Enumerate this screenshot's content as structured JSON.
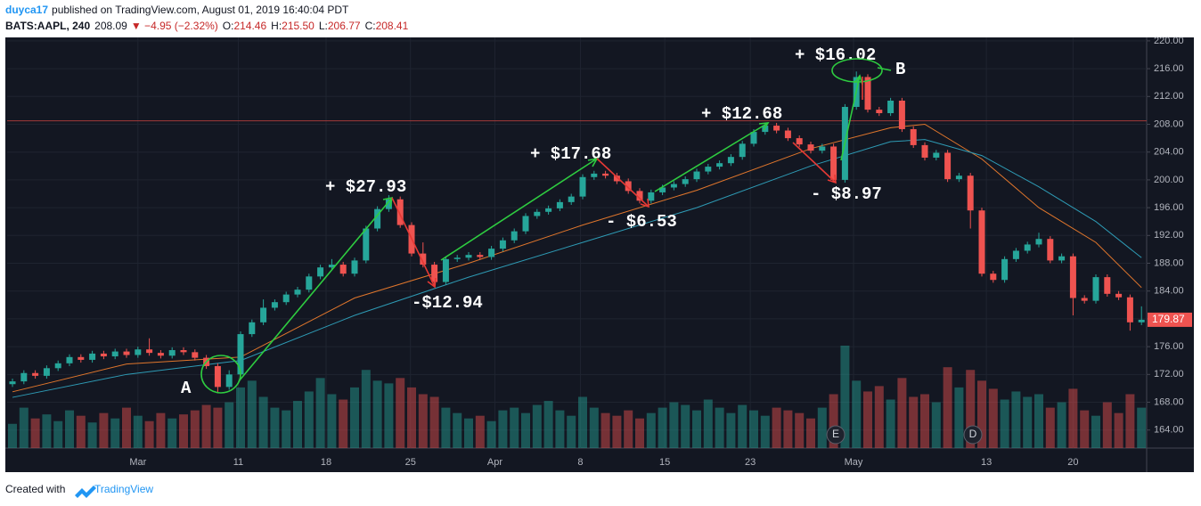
{
  "header": {
    "author": "duyca17",
    "published": "published on TradingView.com, August 01, 2019 16:40:04 PDT",
    "symbol": "BATS:AAPL, 240",
    "price": "208.09",
    "change": "▼ −4.95 (−2.32%)",
    "ohlc": [
      {
        "k": "O:",
        "v": "214.46"
      },
      {
        "k": "H:",
        "v": "215.50"
      },
      {
        "k": "L:",
        "v": "206.77"
      },
      {
        "k": "C:",
        "v": "208.41"
      }
    ]
  },
  "footer": {
    "text": "Created with",
    "brand": "TradingView"
  },
  "chart_data": {
    "type": "candlestick",
    "ylim": [
      161.4,
      220.5
    ],
    "yticks": [
      {
        "value": 164,
        "label": "164.00"
      },
      {
        "value": 168,
        "label": "168.00"
      },
      {
        "value": 172,
        "label": "172.00"
      },
      {
        "value": 176,
        "label": "176.00"
      },
      {
        "value": 180,
        "label": "180.00"
      },
      {
        "value": 184,
        "label": "184.00"
      },
      {
        "value": 188,
        "label": "188.00"
      },
      {
        "value": 192,
        "label": "192.00"
      },
      {
        "value": 196,
        "label": "196.00"
      },
      {
        "value": 200,
        "label": "200.00"
      },
      {
        "value": 204,
        "label": "204.00"
      },
      {
        "value": 208,
        "label": "208.00"
      },
      {
        "value": 212,
        "label": "212.00"
      },
      {
        "value": 216,
        "label": "216.00"
      },
      {
        "value": 220,
        "label": "220.00"
      }
    ],
    "xticks": [
      {
        "value": 11,
        "label": "Mar"
      },
      {
        "value": 19.8,
        "label": "11"
      },
      {
        "value": 27.5,
        "label": "18"
      },
      {
        "value": 34.9,
        "label": "25"
      },
      {
        "value": 42.3,
        "label": "Apr"
      },
      {
        "value": 49.8,
        "label": "8"
      },
      {
        "value": 57.2,
        "label": "15"
      },
      {
        "value": 64.7,
        "label": "23"
      },
      {
        "value": 73.75,
        "label": "May"
      },
      {
        "value": 85.4,
        "label": "13"
      },
      {
        "value": 93,
        "label": "20"
      }
    ],
    "grid": true,
    "up_color": "#26a69a",
    "down_color": "#ef5350",
    "candles": [
      [
        170.6,
        171.4,
        170.2,
        171.0
      ],
      [
        171.0,
        172.6,
        170.6,
        172.2
      ],
      [
        172.2,
        172.6,
        171.4,
        171.8
      ],
      [
        171.8,
        173.3,
        171.4,
        172.9
      ],
      [
        172.9,
        174.0,
        172.5,
        173.6
      ],
      [
        173.6,
        174.9,
        173.2,
        174.5
      ],
      [
        174.5,
        174.9,
        173.7,
        174.1
      ],
      [
        174.1,
        175.4,
        173.7,
        175.0
      ],
      [
        175.0,
        175.4,
        174.2,
        174.6
      ],
      [
        174.6,
        175.7,
        174.2,
        175.3
      ],
      [
        175.3,
        175.7,
        174.4,
        174.8
      ],
      [
        174.8,
        176.0,
        174.4,
        175.6
      ],
      [
        175.6,
        177.2,
        174.7,
        175.1
      ],
      [
        175.1,
        175.5,
        174.3,
        174.7
      ],
      [
        174.7,
        175.9,
        174.3,
        175.5
      ],
      [
        175.5,
        175.9,
        174.8,
        175.2
      ],
      [
        175.2,
        175.6,
        174.0,
        174.4
      ],
      [
        174.4,
        174.8,
        172.8,
        173.2
      ],
      [
        173.2,
        173.6,
        169.4,
        170.2
      ],
      [
        170.2,
        172.6,
        169.8,
        172.0
      ],
      [
        172.0,
        178.2,
        171.6,
        177.8
      ],
      [
        177.8,
        179.9,
        177.4,
        179.5
      ],
      [
        179.5,
        182.8,
        179.1,
        181.6
      ],
      [
        181.6,
        182.8,
        181.2,
        182.4
      ],
      [
        182.4,
        183.9,
        182.0,
        183.5
      ],
      [
        183.5,
        184.6,
        183.1,
        184.2
      ],
      [
        184.2,
        186.5,
        183.8,
        186.1
      ],
      [
        186.1,
        187.8,
        185.7,
        187.4
      ],
      [
        187.4,
        188.6,
        187.0,
        187.8
      ],
      [
        187.8,
        188.2,
        186.1,
        186.5
      ],
      [
        186.5,
        188.8,
        186.1,
        188.4
      ],
      [
        188.4,
        193.4,
        188.0,
        193.0
      ],
      [
        193.0,
        196.2,
        192.6,
        195.8
      ],
      [
        195.8,
        197.8,
        195.4,
        197.2
      ],
      [
        197.2,
        197.6,
        193.1,
        193.5
      ],
      [
        193.5,
        193.9,
        189.0,
        189.4
      ],
      [
        189.4,
        191.0,
        187.4,
        187.8
      ],
      [
        187.8,
        188.2,
        184.9,
        185.3
      ],
      [
        185.3,
        189.0,
        184.9,
        188.6
      ],
      [
        188.6,
        189.2,
        188.2,
        188.8
      ],
      [
        188.8,
        189.6,
        188.4,
        189.2
      ],
      [
        189.2,
        189.6,
        188.5,
        188.9
      ],
      [
        188.9,
        190.5,
        188.5,
        190.1
      ],
      [
        190.1,
        191.7,
        189.7,
        191.3
      ],
      [
        191.3,
        193.0,
        190.9,
        192.6
      ],
      [
        192.6,
        195.2,
        192.2,
        194.8
      ],
      [
        194.8,
        195.8,
        194.4,
        195.4
      ],
      [
        195.4,
        196.3,
        195.0,
        195.9
      ],
      [
        195.9,
        197.2,
        195.5,
        196.8
      ],
      [
        196.8,
        198.0,
        196.4,
        197.6
      ],
      [
        197.6,
        200.8,
        197.2,
        200.4
      ],
      [
        200.4,
        201.3,
        200.0,
        200.9
      ],
      [
        200.9,
        201.3,
        200.2,
        200.6
      ],
      [
        200.6,
        201.0,
        199.4,
        199.8
      ],
      [
        199.8,
        200.2,
        198.0,
        198.4
      ],
      [
        198.4,
        198.8,
        196.6,
        197.0
      ],
      [
        197.0,
        198.6,
        196.6,
        198.2
      ],
      [
        198.2,
        199.3,
        197.8,
        198.9
      ],
      [
        198.9,
        199.8,
        198.5,
        199.4
      ],
      [
        199.4,
        200.5,
        199.0,
        200.1
      ],
      [
        200.1,
        201.6,
        199.7,
        201.2
      ],
      [
        201.2,
        202.3,
        200.8,
        201.9
      ],
      [
        201.9,
        202.8,
        201.5,
        202.4
      ],
      [
        202.4,
        203.7,
        202.0,
        203.3
      ],
      [
        203.3,
        205.6,
        202.9,
        205.2
      ],
      [
        205.2,
        207.3,
        204.8,
        206.9
      ],
      [
        206.9,
        208.2,
        206.5,
        207.8
      ],
      [
        207.8,
        208.2,
        206.7,
        207.1
      ],
      [
        207.1,
        207.5,
        205.6,
        206.0
      ],
      [
        206.0,
        206.4,
        204.7,
        205.1
      ],
      [
        205.1,
        205.5,
        203.8,
        204.2
      ],
      [
        204.2,
        205.2,
        203.8,
        204.8
      ],
      [
        204.8,
        205.2,
        199.6,
        200.0
      ],
      [
        200.0,
        210.9,
        199.6,
        210.5
      ],
      [
        210.5,
        215.6,
        210.1,
        214.8
      ],
      [
        214.8,
        215.2,
        209.7,
        210.1
      ],
      [
        210.1,
        210.5,
        209.2,
        209.6
      ],
      [
        209.6,
        211.8,
        209.2,
        211.4
      ],
      [
        211.4,
        211.8,
        206.9,
        207.3
      ],
      [
        207.3,
        207.7,
        204.6,
        205.0
      ],
      [
        205.0,
        205.4,
        202.8,
        203.2
      ],
      [
        203.2,
        204.3,
        202.8,
        203.9
      ],
      [
        203.9,
        204.3,
        199.7,
        200.1
      ],
      [
        200.1,
        201.0,
        199.7,
        200.6
      ],
      [
        200.6,
        201.0,
        193.0,
        195.6
      ],
      [
        195.6,
        196.0,
        186.1,
        186.5
      ],
      [
        186.5,
        186.9,
        185.2,
        185.6
      ],
      [
        185.6,
        189.0,
        185.2,
        188.6
      ],
      [
        188.6,
        190.2,
        188.2,
        189.8
      ],
      [
        189.8,
        191.1,
        189.4,
        190.7
      ],
      [
        190.7,
        192.4,
        190.3,
        191.5
      ],
      [
        191.5,
        191.9,
        188.0,
        188.4
      ],
      [
        188.4,
        189.4,
        188.0,
        189.0
      ],
      [
        189.0,
        189.4,
        180.5,
        183.0
      ],
      [
        183.0,
        183.4,
        182.2,
        182.6
      ],
      [
        182.6,
        186.4,
        182.2,
        186.0
      ],
      [
        186.0,
        186.4,
        183.2,
        183.6
      ],
      [
        183.6,
        184.0,
        182.7,
        183.1
      ],
      [
        183.1,
        183.5,
        178.3,
        179.5
      ],
      [
        179.5,
        181.8,
        179.1,
        179.87
      ]
    ],
    "volumes": [
      18,
      30,
      22,
      25,
      20,
      28,
      24,
      19,
      26,
      22,
      30,
      24,
      20,
      26,
      22,
      25,
      28,
      32,
      30,
      34,
      45,
      50,
      38,
      30,
      28,
      35,
      42,
      52,
      40,
      36,
      45,
      58,
      50,
      48,
      52,
      45,
      40,
      38,
      30,
      26,
      22,
      24,
      20,
      28,
      30,
      26,
      32,
      35,
      28,
      24,
      38,
      30,
      26,
      24,
      28,
      22,
      26,
      30,
      34,
      32,
      28,
      36,
      30,
      26,
      32,
      28,
      24,
      30,
      28,
      26,
      22,
      30,
      40,
      76,
      50,
      42,
      46,
      36,
      52,
      38,
      40,
      34,
      60,
      45,
      58,
      50,
      44,
      36,
      42,
      38,
      40,
      30,
      34,
      44,
      28,
      24,
      34,
      26,
      40,
      30
    ],
    "series": [
      {
        "color": "#e0762c",
        "x": [
          0,
          10,
          20,
          30,
          40,
          50,
          60,
          70,
          77,
          80,
          85,
          90,
          95,
          99
        ],
        "values": [
          169.5,
          173.5,
          174.5,
          183,
          188,
          193.5,
          198.5,
          204.5,
          207.5,
          208,
          203,
          196,
          191,
          184.5
        ]
      },
      {
        "color": "#2e9bb5",
        "x": [
          0,
          10,
          20,
          30,
          40,
          50,
          60,
          70,
          77,
          80,
          85,
          90,
          95,
          99
        ],
        "values": [
          168.7,
          172,
          174,
          180.5,
          186,
          191,
          196,
          202,
          205.5,
          205.8,
          203.5,
          199,
          194,
          188.8
        ]
      }
    ],
    "hline": {
      "value": 208.5,
      "color": "#a33a3a"
    },
    "annotations": [
      {
        "text": "+ $27.93"
      },
      {
        "text": "-$12.94"
      },
      {
        "text": "+ $17.68"
      },
      {
        "text": "- $6.53"
      },
      {
        "text": "+ $12.68"
      },
      {
        "text": "- $8.97"
      },
      {
        "text": "+ $16.02"
      },
      {
        "text": "A"
      },
      {
        "text": "B"
      }
    ],
    "events": [
      {
        "text": "E"
      },
      {
        "text": "D"
      }
    ]
  }
}
